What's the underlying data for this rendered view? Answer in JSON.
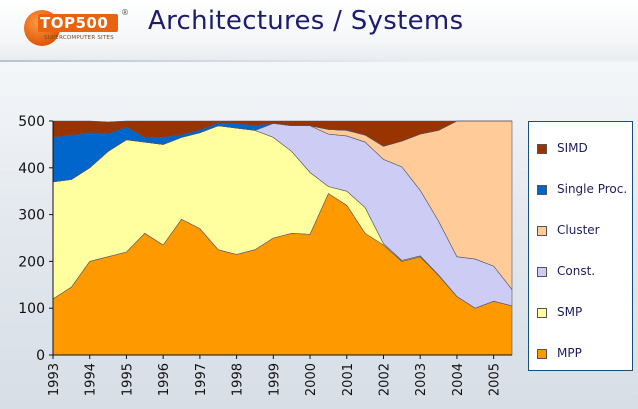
{
  "header": {
    "title": "Architectures / Systems",
    "logo_text": "TOP500",
    "logo_reg": "®",
    "logo_subtitle": "SUPERCOMPUTER SITES"
  },
  "chart_data": {
    "type": "area",
    "stacked": true,
    "x": [
      1993,
      1993.5,
      1994,
      1994.5,
      1995,
      1995.5,
      1996,
      1996.5,
      1997,
      1997.5,
      1998,
      1998.5,
      1999,
      1999.5,
      2000,
      2000.5,
      2001,
      2001.5,
      2002,
      2002.5,
      2003,
      2003.5,
      2004,
      2004.5,
      2005,
      2005.5
    ],
    "x_tick_labels": [
      "1993",
      "1994",
      "1995",
      "1996",
      "1997",
      "1998",
      "1999",
      "2000",
      "2001",
      "2002",
      "2003",
      "2004",
      "2005"
    ],
    "ylim": [
      0,
      500
    ],
    "y_ticks": [
      0,
      100,
      200,
      300,
      400,
      500
    ],
    "grid": false,
    "legend_position": "right",
    "series": [
      {
        "name": "MPP",
        "color": "#ff9900",
        "values": [
          120,
          145,
          200,
          210,
          220,
          260,
          235,
          290,
          270,
          225,
          215,
          225,
          250,
          260,
          258,
          345,
          320,
          260,
          235,
          200,
          210,
          170,
          125,
          100,
          115,
          105
        ]
      },
      {
        "name": "SMP",
        "color": "#ffffa0",
        "values": [
          250,
          230,
          200,
          225,
          240,
          195,
          215,
          175,
          205,
          265,
          270,
          255,
          215,
          175,
          132,
          15,
          30,
          55,
          3,
          2,
          2,
          1,
          0,
          0,
          0,
          0
        ]
      },
      {
        "name": "Const.",
        "color": "#ccccf5",
        "values": [
          0,
          0,
          0,
          0,
          0,
          0,
          0,
          0,
          0,
          0,
          0,
          0,
          30,
          55,
          100,
          112,
          118,
          140,
          180,
          200,
          140,
          115,
          85,
          105,
          75,
          35
        ]
      },
      {
        "name": "Cluster",
        "color": "#ffcc99",
        "values": [
          0,
          0,
          0,
          0,
          0,
          0,
          0,
          0,
          0,
          0,
          0,
          0,
          0,
          0,
          0,
          10,
          12,
          15,
          28,
          55,
          120,
          194,
          290,
          295,
          310,
          360
        ]
      },
      {
        "name": "Single Proc.",
        "color": "#0066cc",
        "values": [
          95,
          95,
          75,
          38,
          27,
          10,
          15,
          6,
          6,
          6,
          10,
          10,
          0,
          0,
          0,
          0,
          0,
          0,
          0,
          0,
          0,
          0,
          0,
          0,
          0,
          0
        ]
      },
      {
        "name": "SIMD",
        "color": "#993300",
        "values": [
          35,
          30,
          25,
          25,
          13,
          35,
          35,
          29,
          19,
          4,
          5,
          10,
          5,
          10,
          10,
          18,
          20,
          30,
          54,
          43,
          28,
          20,
          0,
          0,
          0,
          0
        ]
      }
    ],
    "legend_order": [
      "SIMD",
      "Single Proc.",
      "Cluster",
      "Const.",
      "SMP",
      "MPP"
    ]
  }
}
